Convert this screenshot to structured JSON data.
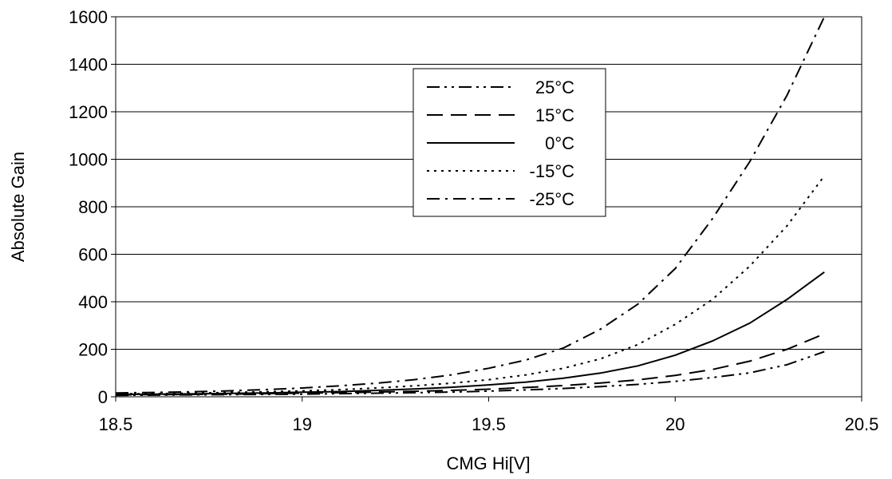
{
  "chart_data": {
    "type": "line",
    "title": "",
    "xlabel": "CMG Hi[V]",
    "ylabel": "Absolute Gain",
    "xlim": [
      18.5,
      20.5
    ],
    "ylim": [
      0,
      1600
    ],
    "x_ticks": [
      "18.5",
      "19",
      "19.5",
      "20",
      "20.5"
    ],
    "y_ticks": [
      "0",
      "200",
      "400",
      "600",
      "800",
      "1000",
      "1200",
      "1400",
      "1600"
    ],
    "grid": "horizontal",
    "legend_position": "top-center",
    "x": [
      18.5,
      18.6,
      18.7,
      18.8,
      18.9,
      19.0,
      19.1,
      19.2,
      19.3,
      19.4,
      19.5,
      19.6,
      19.7,
      19.8,
      19.9,
      20.0,
      20.1,
      20.2,
      20.3,
      20.4
    ],
    "series": [
      {
        "name": "25°C",
        "dash": "dash-dot-dot",
        "values": [
          6,
          7,
          8,
          9,
          10,
          11,
          13,
          15,
          17,
          20,
          24,
          29,
          35,
          43,
          52,
          65,
          81,
          101,
          135,
          190
        ]
      },
      {
        "name": "15°C",
        "dash": "dash",
        "values": [
          8,
          9,
          10,
          11,
          13,
          15,
          17,
          20,
          23,
          27,
          32,
          39,
          47,
          58,
          71,
          90,
          115,
          150,
          200,
          265
        ]
      },
      {
        "name": "0°C",
        "dash": "solid",
        "values": [
          10,
          11,
          12,
          14,
          16,
          19,
          22,
          27,
          33,
          40,
          50,
          62,
          78,
          100,
          130,
          175,
          235,
          310,
          410,
          525
        ]
      },
      {
        "name": "-15°C",
        "dash": "dot",
        "values": [
          12,
          13,
          15,
          18,
          21,
          25,
          30,
          37,
          46,
          57,
          72,
          92,
          120,
          160,
          220,
          305,
          410,
          550,
          720,
          930
        ]
      },
      {
        "name": "-25°C",
        "dash": "dash-dot",
        "values": [
          16,
          18,
          21,
          25,
          30,
          37,
          46,
          57,
          72,
          92,
          120,
          155,
          205,
          285,
          390,
          540,
          750,
          990,
          1270,
          1600
        ]
      }
    ]
  }
}
